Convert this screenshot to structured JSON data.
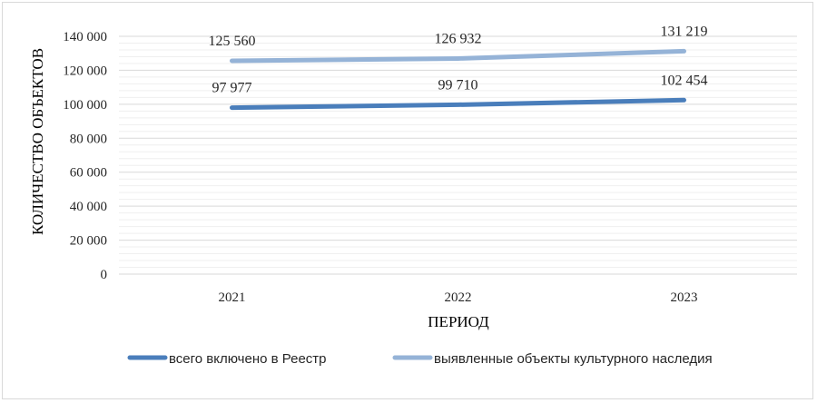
{
  "chart_data": {
    "type": "line",
    "title": "",
    "xlabel": "ПЕРИОД",
    "ylabel": "КОЛИЧЕСТВО ОБЪЕКТОВ",
    "categories": [
      "2021",
      "2022",
      "2023"
    ],
    "ylim": [
      0,
      140000
    ],
    "yticks": [
      0,
      20000,
      40000,
      60000,
      80000,
      100000,
      120000,
      140000
    ],
    "ytick_labels": [
      "0",
      "20 000",
      "40 000",
      "60 000",
      "80 000",
      "100 000",
      "120 000",
      "140 000"
    ],
    "grid": true,
    "legend_position": "bottom",
    "series": [
      {
        "name": "всего включено в Реестр",
        "values": [
          97977,
          99710,
          102454
        ],
        "labels": [
          "97 977",
          "99 710",
          "102 454"
        ],
        "color": "#4a7ebb"
      },
      {
        "name": "выявленные объекты культурного наследия",
        "values": [
          125560,
          126932,
          131219
        ],
        "labels": [
          "125 560",
          "126 932",
          "131 219"
        ],
        "color": "#95b3d7"
      }
    ]
  }
}
